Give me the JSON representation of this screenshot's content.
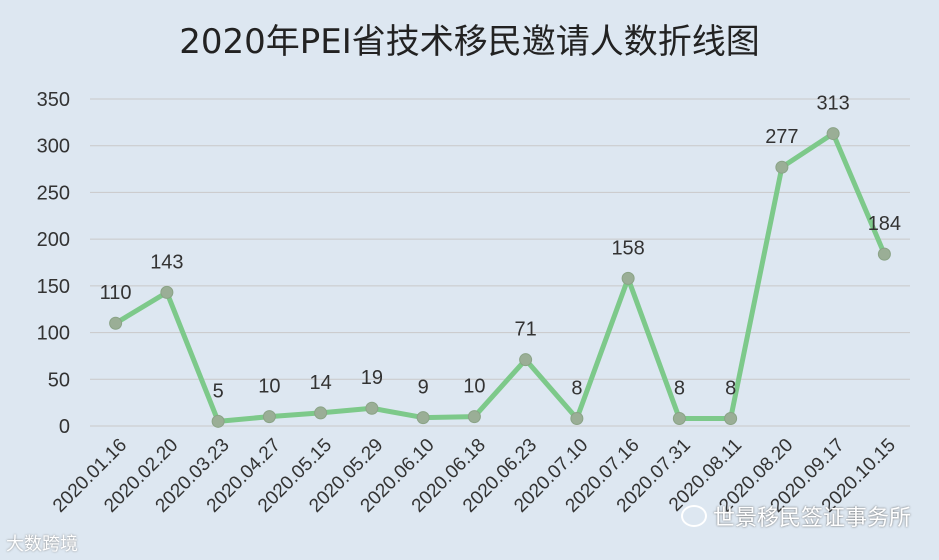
{
  "chart_data": {
    "type": "line",
    "title": "2020年PEI省技术移民邀请人数折线图",
    "categories": [
      "2020.01.16",
      "2020.02.20",
      "2020.03.23",
      "2020.04.27",
      "2020.05.15",
      "2020.05.29",
      "2020.06.10",
      "2020.06.18",
      "2020.06.23",
      "2020.07.10",
      "2020.07.16",
      "2020.07.31",
      "2020.08.11",
      "2020.08.20",
      "2020.09.17",
      "2020.10.15"
    ],
    "series": [
      {
        "values": [
          110,
          143,
          5,
          10,
          14,
          19,
          9,
          10,
          71,
          8,
          158,
          8,
          8,
          277,
          313,
          184
        ]
      }
    ],
    "ylim": [
      0,
      350
    ],
    "yticks": [
      0,
      50,
      100,
      150,
      200,
      250,
      300,
      350
    ],
    "grid": true,
    "line_color": "#7dc98a",
    "marker_color": "#9aae96",
    "background_color": "#dde7f1"
  },
  "watermarks": {
    "left": "大数跨境",
    "right": "世景移民签证事务所"
  }
}
